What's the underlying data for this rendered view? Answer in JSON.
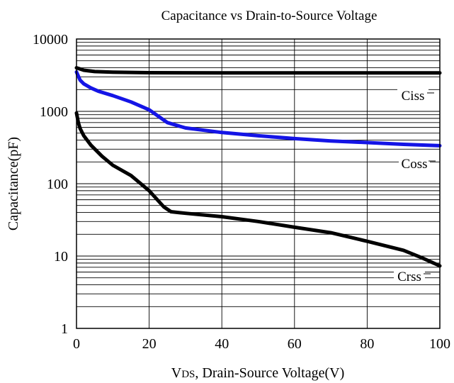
{
  "chart_data": {
    "type": "line",
    "title": "Capacitance vs Drain-to-Source Voltage",
    "xlabel": "VDS, Drain-Source Voltage(V)",
    "xlabel_parts": [
      "V",
      "DS",
      ", Drain-Source Voltage(V)"
    ],
    "ylabel": "Capacitance(pF)",
    "xlim": [
      0,
      100
    ],
    "ylim": [
      1,
      10000
    ],
    "y_scale": "log",
    "grid": true,
    "x_ticks": [
      "0",
      "20",
      "40",
      "60",
      "80",
      "100"
    ],
    "y_ticks": [
      "1",
      "10",
      "100",
      "1000",
      "10000"
    ],
    "series": [
      {
        "name": "Ciss",
        "color": "#000000",
        "x": [
          0,
          1,
          2,
          5,
          10,
          20,
          40,
          60,
          80,
          100
        ],
        "y": [
          4000,
          3850,
          3700,
          3550,
          3480,
          3420,
          3400,
          3400,
          3400,
          3400
        ]
      },
      {
        "name": "Coss",
        "color": "#1414e6",
        "x": [
          0,
          1,
          2,
          4,
          6,
          10,
          15,
          20,
          25,
          30,
          40,
          50,
          60,
          70,
          80,
          90,
          100
        ],
        "y": [
          3500,
          2700,
          2400,
          2100,
          1900,
          1650,
          1350,
          1050,
          700,
          590,
          510,
          460,
          420,
          390,
          370,
          350,
          335
        ]
      },
      {
        "name": "Crss",
        "color": "#000000",
        "x": [
          0,
          0.5,
          1,
          2,
          4,
          7,
          10,
          15,
          20,
          24,
          26,
          30,
          40,
          50,
          60,
          70,
          80,
          90,
          95,
          100
        ],
        "y": [
          950,
          700,
          580,
          460,
          340,
          240,
          180,
          130,
          80,
          48,
          41,
          39,
          35,
          30,
          25,
          21,
          16,
          12,
          9.5,
          7.3
        ]
      }
    ]
  }
}
